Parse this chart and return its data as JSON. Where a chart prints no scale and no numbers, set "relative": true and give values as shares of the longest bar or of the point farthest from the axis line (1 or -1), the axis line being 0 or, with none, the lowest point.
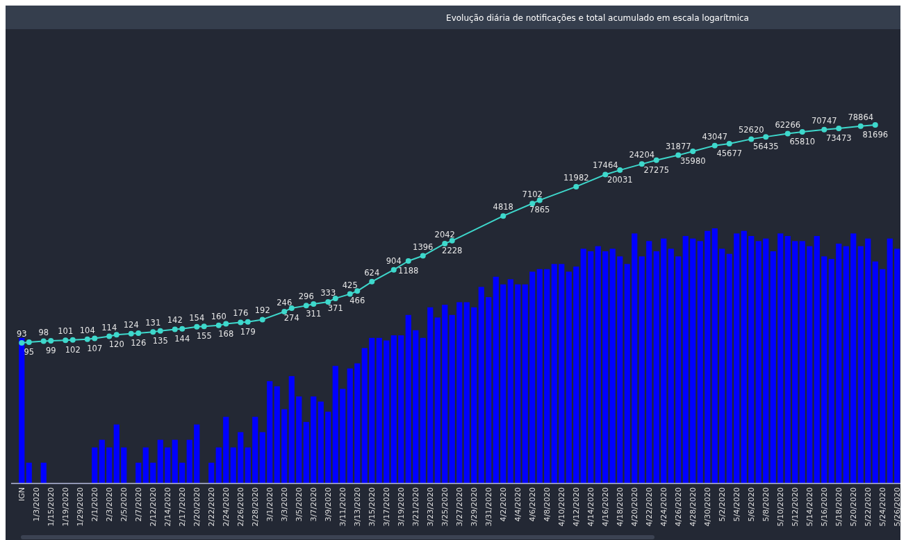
{
  "chart_data": [
    {
      "type": "bar",
      "title": "Evolução diária de notificações e total acumulado em escala logarítmica",
      "categories": [
        "IGN",
        null,
        "1/3/2020",
        null,
        "1/15/2020",
        null,
        "1/19/2020",
        null,
        "1/29/2020",
        null,
        "2/1/2020",
        null,
        "2/3/2020",
        null,
        "2/5/2020",
        null,
        "2/7/2020",
        null,
        "2/12/2020",
        null,
        "2/14/2020",
        null,
        "2/17/2020",
        null,
        "2/20/2020",
        null,
        "2/22/2020",
        null,
        "2/24/2020",
        null,
        "2/26/2020",
        null,
        "2/28/2020",
        null,
        "3/1/2020",
        null,
        "3/3/2020",
        null,
        "3/5/2020",
        null,
        "3/7/2020",
        null,
        "3/9/2020",
        null,
        "3/11/2020",
        null,
        "3/13/2020",
        null,
        "3/15/2020",
        null,
        "3/17/2020",
        null,
        "3/19/2020",
        null,
        "3/21/2020",
        null,
        "3/23/2020",
        null,
        "3/25/2020",
        null,
        "3/27/2020",
        null,
        "3/29/2020",
        null,
        "3/31/2020",
        null,
        "4/2/2020",
        null,
        "4/4/2020",
        null,
        "4/6/2020",
        null,
        "4/8/2020",
        null,
        "4/10/2020",
        null,
        "4/12/2020",
        null,
        "4/14/2020",
        null,
        "4/16/2020",
        null,
        "4/18/2020",
        null,
        "4/20/2020",
        null,
        "4/22/2020",
        null,
        "4/24/2020",
        null,
        "4/26/2020",
        null,
        "4/28/2020",
        null,
        "4/30/2020",
        null,
        "5/2/2020",
        null,
        "5/4/2020",
        null,
        "5/6/2020",
        null,
        "5/8/2020",
        null,
        "5/10/2020",
        null,
        "5/12/2020",
        null,
        "5/14/2020",
        null,
        "5/16/2020",
        null,
        "5/18/2020",
        null,
        "5/20/2020",
        null,
        "5/22/2020",
        null,
        "5/24/2020",
        null,
        "5/26/2020"
      ],
      "relative": true,
      "tick_labels": "x",
      "series": [
        {
          "color": "#0000ff",
          "values": [
            0.57,
            0.08,
            0,
            0.08,
            0,
            0,
            0,
            0,
            0,
            0,
            0.14,
            0.17,
            0.14,
            0.23,
            0.14,
            0,
            0.08,
            0.14,
            0.08,
            0.17,
            0.14,
            0.17,
            0.08,
            0.17,
            0.23,
            0,
            0.08,
            0.14,
            0.26,
            0.14,
            0.2,
            0.14,
            0.26,
            0.2,
            0.4,
            0.38,
            0.29,
            0.42,
            0.34,
            0.24,
            0.34,
            0.32,
            0.28,
            0.46,
            0.37,
            0.45,
            0.47,
            0.53,
            0.57,
            0.57,
            0.56,
            0.58,
            0.58,
            0.66,
            0.6,
            0.57,
            0.69,
            0.65,
            0.7,
            0.66,
            0.71,
            0.71,
            0.69,
            0.77,
            0.73,
            0.81,
            0.78,
            0.8,
            0.78,
            0.78,
            0.83,
            0.84,
            0.84,
            0.86,
            0.86,
            0.83,
            0.85,
            0.92,
            0.91,
            0.93,
            0.91,
            0.92,
            0.89,
            0.86,
            0.98,
            0.89,
            0.95,
            0.91,
            0.96,
            0.92,
            0.89,
            0.97,
            0.96,
            0.95,
            0.99,
            1,
            0.92,
            0.9,
            0.98,
            0.99,
            0.97,
            0.95,
            0.96,
            0.91,
            0.98,
            0.97,
            0.95,
            0.95,
            0.93,
            0.97,
            0.89,
            0.88,
            0.94,
            0.93,
            0.98,
            0.93,
            0.96,
            0.87,
            0.84,
            0.96,
            0.92
          ]
        }
      ]
    },
    {
      "type": "line",
      "log": true,
      "tick_labels": false,
      "marker": "circle",
      "series": [
        {
          "color": "#3ed8cc",
          "values": [
            93,
            95,
            null,
            98,
            99,
            null,
            101,
            102,
            null,
            104,
            107,
            null,
            114,
            120,
            null,
            124,
            126,
            null,
            131,
            135,
            null,
            142,
            144,
            null,
            154,
            155,
            null,
            160,
            168,
            null,
            176,
            179,
            null,
            192,
            null,
            null,
            246,
            274,
            null,
            296,
            311,
            null,
            333,
            371,
            null,
            425,
            466,
            null,
            624,
            null,
            null,
            904,
            null,
            1188,
            null,
            1396,
            null,
            null,
            2042,
            2228,
            null,
            null,
            null,
            null,
            null,
            null,
            4818,
            null,
            null,
            null,
            7102,
            7865,
            null,
            null,
            null,
            null,
            11982,
            null,
            null,
            null,
            17464,
            null,
            20031,
            null,
            null,
            24204,
            null,
            27275,
            null,
            null,
            31877,
            null,
            35980,
            null,
            null,
            43047,
            null,
            45677,
            null,
            null,
            52620,
            null,
            56435,
            null,
            null,
            62266,
            null,
            65810,
            null,
            null,
            70747,
            null,
            73473,
            null,
            null,
            78864,
            null,
            81696,
            null,
            null,
            null
          ],
          "value_labels": [
            "93",
            "95",
            null,
            "98",
            "99",
            null,
            "101",
            "102",
            null,
            "104",
            "107",
            null,
            "114",
            "120",
            null,
            "124",
            "126",
            null,
            "131",
            "135",
            null,
            "142",
            "144",
            null,
            "154",
            "155",
            null,
            "160",
            "168",
            null,
            "176",
            "179",
            null,
            "192",
            null,
            null,
            "246",
            "274",
            null,
            "296",
            "311",
            null,
            "333",
            "371",
            null,
            "425",
            "466",
            null,
            "624",
            null,
            null,
            "904",
            null,
            "1188",
            null,
            "1396",
            null,
            null,
            "2042",
            "2228",
            null,
            null,
            null,
            null,
            null,
            null,
            "4818",
            null,
            null,
            null,
            "7102",
            "7865",
            null,
            null,
            null,
            null,
            "11982",
            null,
            null,
            null,
            "17464",
            null,
            "20031",
            null,
            null,
            "24204",
            null,
            "27275",
            null,
            null,
            "31877",
            null,
            "35980",
            null,
            null,
            "43047",
            null,
            "45677",
            null,
            null,
            "52620",
            null,
            "56435",
            null,
            null,
            "62266",
            null,
            "65810",
            null,
            null,
            "70747",
            null,
            "73473",
            null,
            null,
            "78864",
            null,
            "81696",
            null,
            null,
            null
          ]
        }
      ]
    }
  ]
}
